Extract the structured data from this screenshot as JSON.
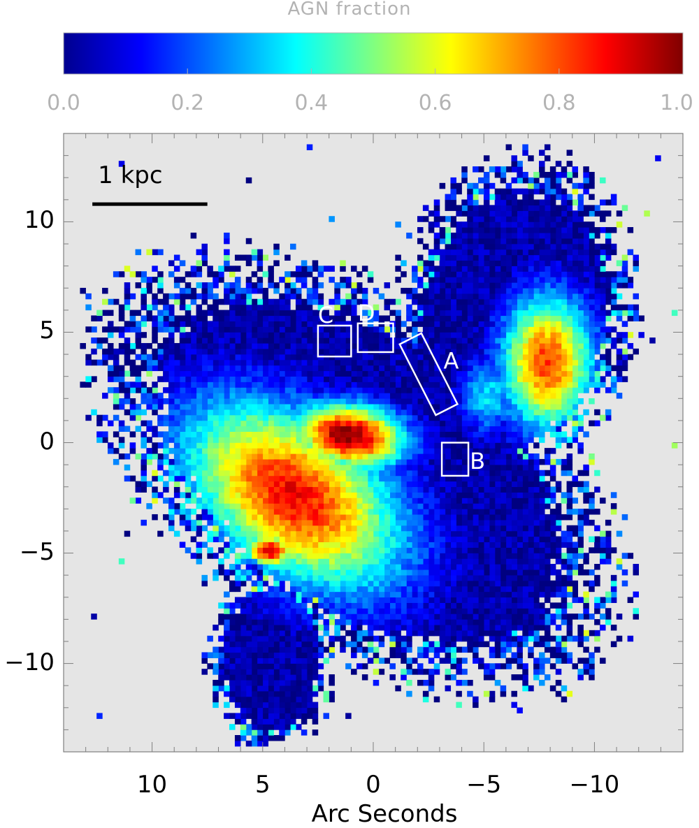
{
  "chart_data": {
    "type": "heatmap",
    "colorbar": {
      "label": "AGN fraction",
      "range": [
        0.0,
        1.0
      ],
      "ticks": [
        "0.0",
        "0.2",
        "0.4",
        "0.6",
        "0.8",
        "1.0"
      ],
      "colormap": "jet"
    },
    "xlabel": "Arc Seconds",
    "ylabel": "",
    "x_range": [
      14,
      -14
    ],
    "y_range": [
      -14,
      14
    ],
    "x_ticks": [
      {
        "value": 10,
        "label": "10"
      },
      {
        "value": 5,
        "label": "5"
      },
      {
        "value": 0,
        "label": "0"
      },
      {
        "value": -5,
        "label": "−5"
      },
      {
        "value": -10,
        "label": "−10"
      }
    ],
    "y_ticks": [
      {
        "value": 10,
        "label": "10"
      },
      {
        "value": 5,
        "label": "5"
      },
      {
        "value": 0,
        "label": "0"
      },
      {
        "value": -5,
        "label": "−5"
      },
      {
        "value": -10,
        "label": "−10"
      }
    ],
    "background_color": "#e5e5e5",
    "scale_bar": {
      "label": "1 kpc",
      "x_start": 12.7,
      "x_end": 7.5,
      "y": 10.8
    },
    "regions": [
      {
        "label": "A",
        "shape": "rotated-rectangle",
        "center": [
          -2.5,
          3.1
        ],
        "size": [
          1.1,
          3.6
        ],
        "angle_deg": -27
      },
      {
        "label": "B",
        "shape": "rectangle",
        "x": [
          -3.1,
          -4.3
        ],
        "y": [
          0.0,
          -1.5
        ]
      },
      {
        "label": "C",
        "shape": "rectangle",
        "x": [
          2.5,
          1.0
        ],
        "y": [
          5.3,
          3.9
        ]
      },
      {
        "label": "D",
        "shape": "rectangle",
        "x": [
          0.7,
          -0.9
        ],
        "y": [
          5.4,
          4.1
        ]
      }
    ],
    "components": [
      {
        "name": "",
        "center": [
          3.5,
          -2.5
        ],
        "radii": [
          6.8,
          4.2
        ],
        "angle_deg": 35,
        "peak": 0.88
      },
      {
        "name": "",
        "center": [
          1.0,
          0.2
        ],
        "radii": [
          3.2,
          1.8
        ],
        "angle_deg": 8,
        "peak": 1.0
      },
      {
        "name": "",
        "center": [
          4.6,
          -5.0
        ],
        "radii": [
          1.4,
          1.0
        ],
        "angle_deg": 0,
        "peak": 0.92
      },
      {
        "name": "",
        "center": [
          -8.0,
          3.5
        ],
        "radii": [
          2.6,
          3.8
        ],
        "angle_deg": 0,
        "peak": 0.82
      },
      {
        "name": "",
        "center": [
          -5.3,
          2.0
        ],
        "radii": [
          1.6,
          2.2
        ],
        "angle_deg": 0,
        "peak": 0.35
      }
    ]
  }
}
